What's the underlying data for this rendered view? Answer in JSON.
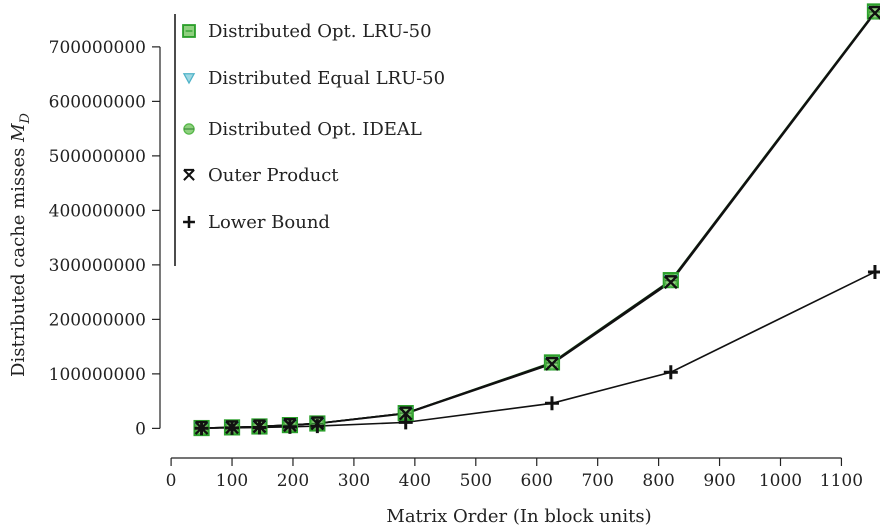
{
  "chart_data": {
    "type": "line",
    "title": "",
    "xlabel": "Matrix Order (In block units)",
    "ylabel": "Distributed cache misses",
    "ylabel_math": "M",
    "ylabel_sub": "D",
    "xlim": [
      -10,
      1160
    ],
    "ylim": [
      -25000000,
      775000000
    ],
    "xticks": [
      0,
      100,
      200,
      300,
      400,
      500,
      600,
      700,
      800,
      900,
      1000,
      1100
    ],
    "yticks": [
      0,
      100000000,
      200000000,
      300000000,
      400000000,
      500000000,
      600000000,
      700000000
    ],
    "ytick_labels": [
      "0",
      "100000000",
      "200000000",
      "300000000",
      "400000000",
      "500000000",
      "600000000",
      "700000000"
    ],
    "x": [
      50,
      100,
      145,
      195,
      240,
      385,
      625,
      820,
      1155
    ],
    "series": [
      {
        "name": "Distributed Opt. LRU-50",
        "marker": "square",
        "color": "#2ca02c",
        "values": [
          600000,
          1800000,
          3500000,
          6000000,
          9000000,
          28000000,
          121000000,
          272000000,
          765000000
        ]
      },
      {
        "name": "Distributed Equal LRU-50",
        "marker": "triangle-down",
        "color": "#4fb3c8",
        "values": [
          600000,
          1800000,
          3500000,
          6000000,
          9000000,
          28000000,
          120000000,
          271000000,
          764000000
        ]
      },
      {
        "name": "Distributed Opt. IDEAL",
        "marker": "circle",
        "color": "#55b748",
        "values": [
          600000,
          1800000,
          3500000,
          6000000,
          9000000,
          28000000,
          120000000,
          271000000,
          764000000
        ]
      },
      {
        "name": "Outer Product",
        "marker": "x",
        "color": "#111111",
        "values": [
          600000,
          1800000,
          3400000,
          5800000,
          8800000,
          27000000,
          118000000,
          268000000,
          762000000
        ]
      },
      {
        "name": "Lower Bound",
        "marker": "plus",
        "color": "#111111",
        "values": [
          300000,
          900000,
          1700000,
          2800000,
          4200000,
          11000000,
          46000000,
          103000000,
          287000000
        ]
      }
    ],
    "legend": "top-left",
    "grid": false
  }
}
